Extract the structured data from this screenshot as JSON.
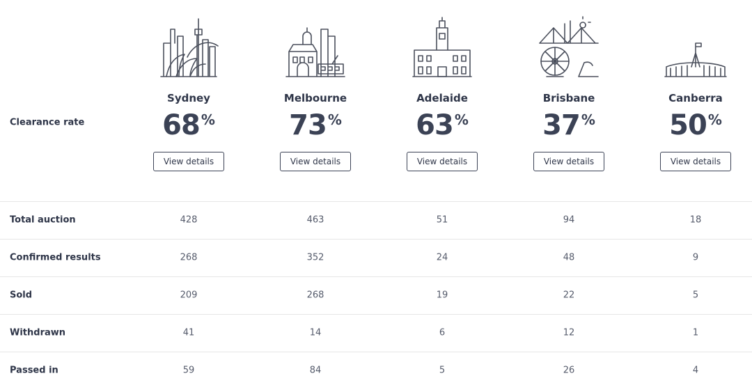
{
  "header": {
    "label": "Clearance rate",
    "percent_sign": "%",
    "button_label": "View details"
  },
  "cities": [
    {
      "name": "Sydney",
      "rate": 68
    },
    {
      "name": "Melbourne",
      "rate": 73
    },
    {
      "name": "Adelaide",
      "rate": 63
    },
    {
      "name": "Brisbane",
      "rate": 37
    },
    {
      "name": "Canberra",
      "rate": 50
    }
  ],
  "rows": [
    {
      "label": "Total auction",
      "values": [
        428,
        463,
        51,
        94,
        18
      ]
    },
    {
      "label": "Confirmed results",
      "values": [
        268,
        352,
        24,
        48,
        9
      ]
    },
    {
      "label": "Sold",
      "values": [
        209,
        268,
        19,
        22,
        5
      ]
    },
    {
      "label": "Withdrawn",
      "values": [
        41,
        14,
        6,
        12,
        1
      ]
    },
    {
      "label": "Passed in",
      "values": [
        59,
        84,
        5,
        26,
        4
      ]
    }
  ]
}
